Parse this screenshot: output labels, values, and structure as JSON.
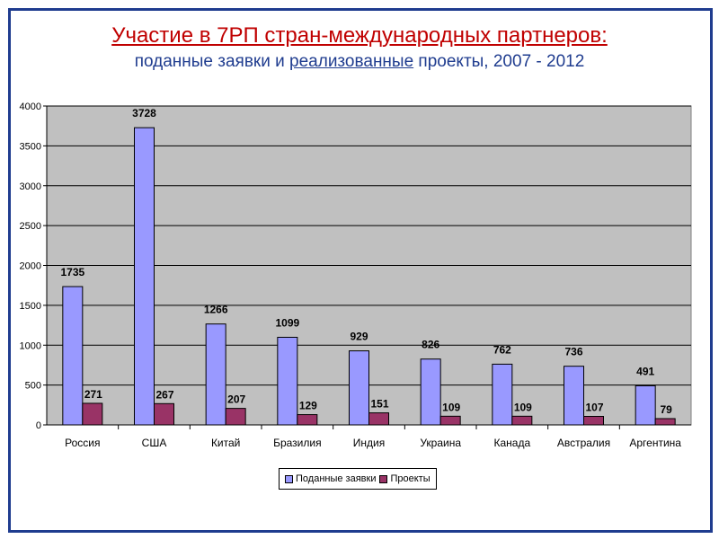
{
  "title": "Участие в 7РП стран-международных партнеров:",
  "subtitle": {
    "part1": "поданные заявки и ",
    "part2": "реализованные",
    "part3": " проекты, 2007 - 2012"
  },
  "colors": {
    "title": "#c00000",
    "subtitle": "#1f3c8f",
    "frame": "#1f3c8f",
    "plot_bg": "#c0c0c0",
    "applications": "#9999ff",
    "projects": "#993366"
  },
  "chart_data": {
    "type": "bar",
    "title": "Участие в 7РП стран-международных партнеров:",
    "subtitle": "поданные заявки и реализованные проекты, 2007 - 2012",
    "categories": [
      "Россия",
      "США",
      "Китай",
      "Бразилия",
      "Индия",
      "Украина",
      "Канада",
      "Австралия",
      "Аргентина"
    ],
    "series": [
      {
        "name": "Поданные заявки",
        "values": [
          1735,
          3728,
          1266,
          1099,
          929,
          826,
          762,
          736,
          491
        ]
      },
      {
        "name": "Проекты",
        "values": [
          271,
          267,
          207,
          129,
          151,
          109,
          109,
          107,
          79
        ]
      }
    ],
    "yticks": [
      0,
      500,
      1000,
      1500,
      2000,
      2500,
      3000,
      3500,
      4000
    ],
    "ylim": [
      0,
      4000
    ],
    "grid": true,
    "legend_position": "bottom",
    "data_labels": true
  }
}
